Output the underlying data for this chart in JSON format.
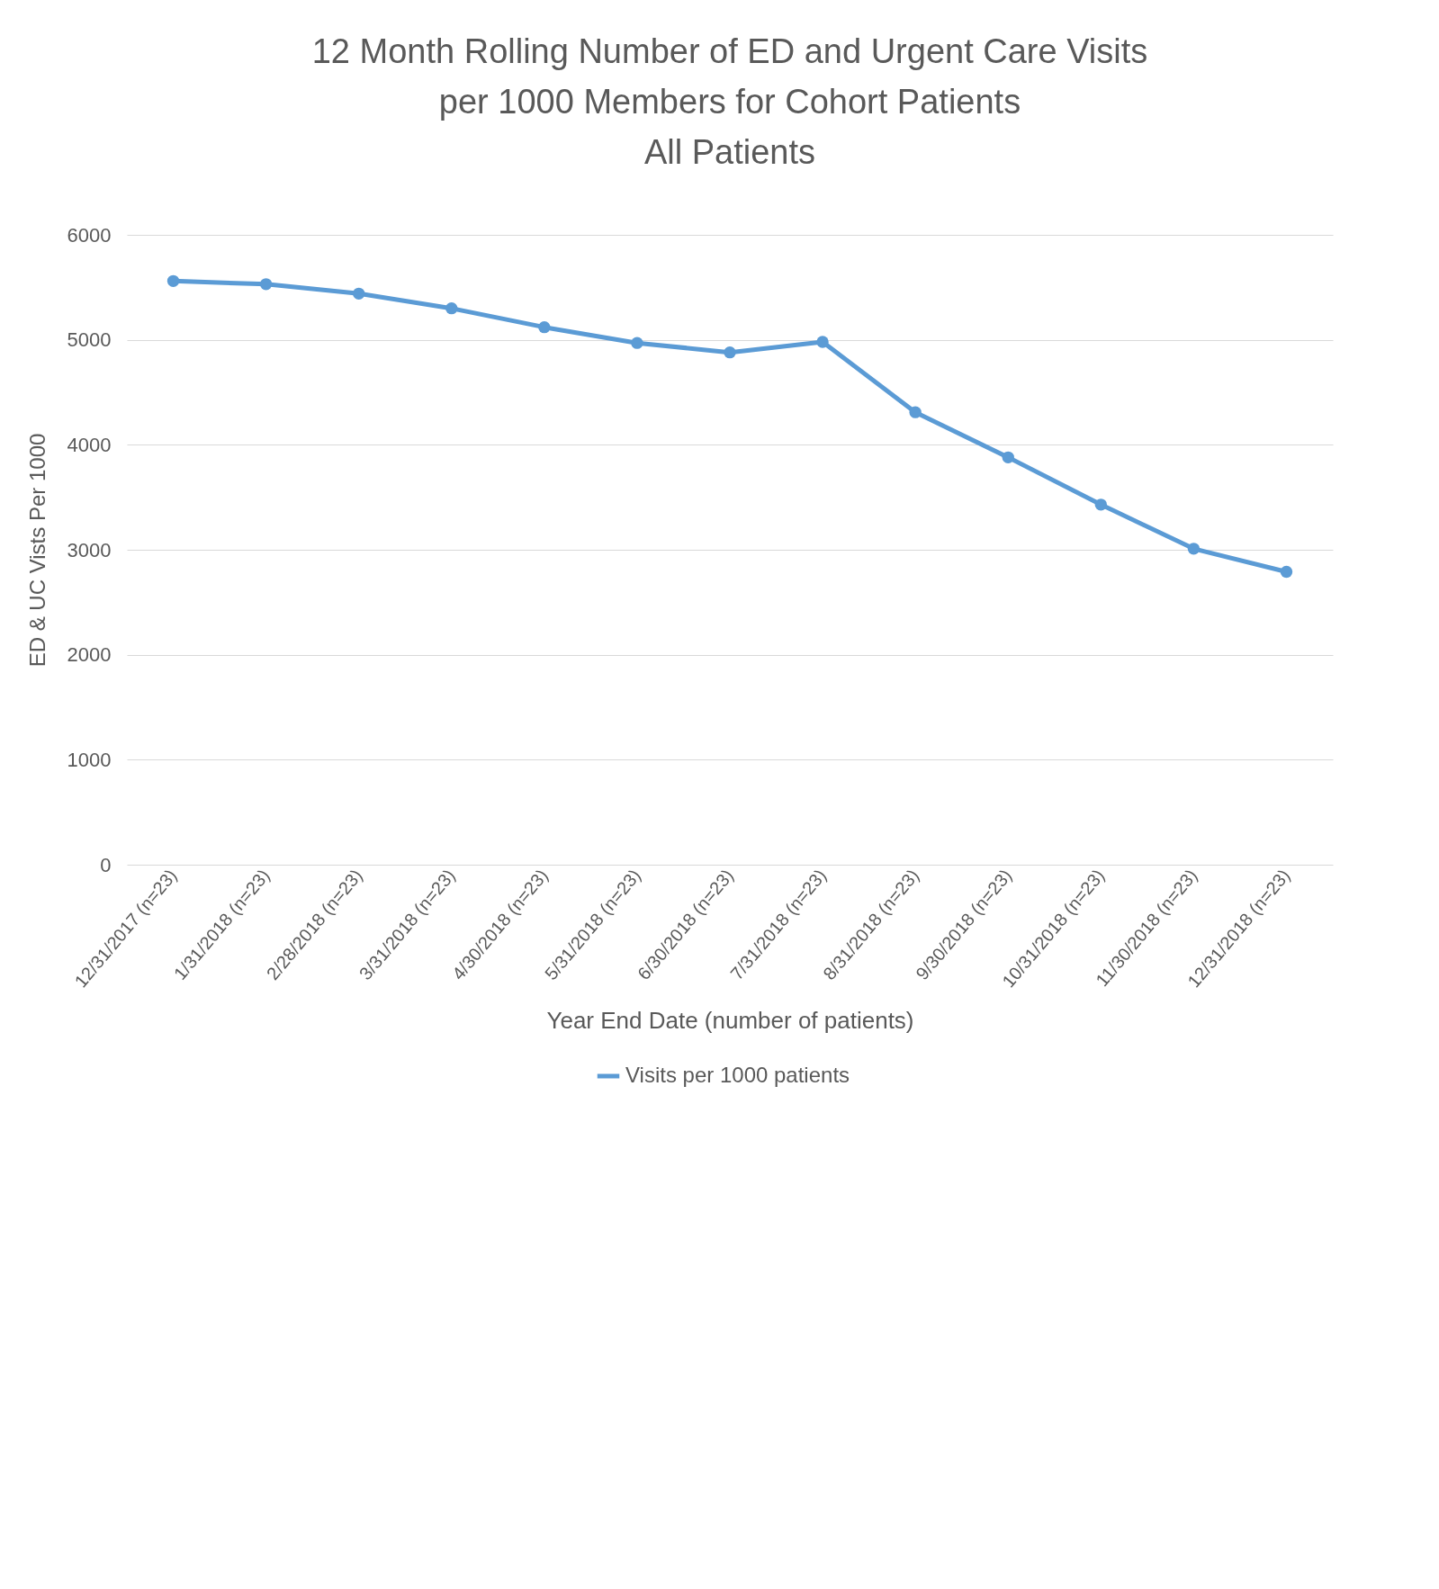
{
  "chart_data": {
    "type": "line",
    "title": [
      "12 Month Rolling Number of ED and Urgent Care Visits",
      "per 1000 Members for Cohort Patients",
      "All Patients"
    ],
    "xlabel": "Year End Date (number of patients)",
    "ylabel": "ED & UC Vists Per 1000",
    "categories": [
      "12/31/2017 (n=23)",
      "1/31/2018 (n=23)",
      "2/28/2018 (n=23)",
      "3/31/2018 (n=23)",
      "4/30/2018 (n=23)",
      "5/31/2018 (n=23)",
      "6/30/2018 (n=23)",
      "7/31/2018 (n=23)",
      "8/31/2018 (n=23)",
      "9/30/2018 (n=23)",
      "10/31/2018 (n=23)",
      "11/30/2018 (n=23)",
      "12/31/2018 (n=23)"
    ],
    "series": [
      {
        "name": "Visits per 1000 patients",
        "color": "#5b9bd5",
        "values": [
          5560,
          5530,
          5440,
          5300,
          5120,
          4970,
          4880,
          4980,
          4310,
          3880,
          3430,
          3010,
          2790
        ]
      }
    ],
    "ylim": [
      0,
      6000
    ],
    "yticks": [
      0,
      1000,
      2000,
      3000,
      4000,
      5000,
      6000
    ],
    "grid": "y",
    "legend": "bottom",
    "marker": "circle",
    "line_style": "solid"
  }
}
